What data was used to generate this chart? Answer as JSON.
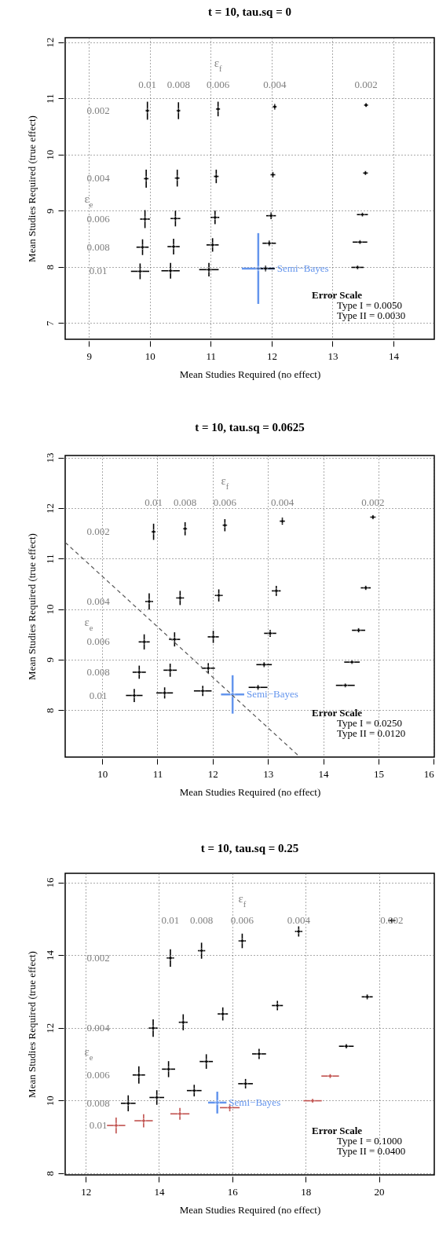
{
  "chart_data": [
    {
      "type": "scatter",
      "title": "t = 10, tau.sq = 0",
      "xlabel": "Mean Studies Required (no effect)",
      "ylabel": "Mean Studies Required (true effect)",
      "xlim": [
        8.61,
        14.67
      ],
      "ylim": [
        6.71,
        12.08
      ],
      "xticks": [
        9,
        10,
        11,
        12,
        13,
        14
      ],
      "yticks": [
        7,
        8,
        9,
        10,
        11,
        12
      ],
      "grid": true,
      "marker": "cross",
      "series": [
        {
          "color": "#000000",
          "x": [
            9.96,
            10.47,
            11.12,
            12.05,
            13.55
          ],
          "values": [
            10.78,
            10.78,
            10.81,
            10.85,
            10.88
          ],
          "xerrors": [
            0.02,
            0.02,
            0.03,
            0.03,
            0.03
          ],
          "errors": [
            0.16,
            0.15,
            0.13,
            0.05,
            0.03
          ]
        },
        {
          "color": "#000000",
          "x": [
            9.94,
            10.45,
            11.09,
            12.02,
            13.54
          ],
          "values": [
            9.57,
            9.58,
            9.61,
            9.64,
            9.67
          ],
          "xerrors": [
            0.04,
            0.04,
            0.04,
            0.04,
            0.04
          ],
          "errors": [
            0.16,
            0.15,
            0.12,
            0.05,
            0.03
          ]
        },
        {
          "color": "#000000",
          "x": [
            9.92,
            10.42,
            11.07,
            11.99,
            13.49
          ],
          "values": [
            8.85,
            8.86,
            8.88,
            8.91,
            8.93
          ],
          "xerrors": [
            0.08,
            0.08,
            0.07,
            0.08,
            0.09
          ],
          "errors": [
            0.16,
            0.14,
            0.12,
            0.06,
            0.02
          ]
        },
        {
          "color": "#000000",
          "x": [
            9.88,
            10.39,
            11.03,
            11.96,
            13.45
          ],
          "values": [
            8.35,
            8.36,
            8.39,
            8.42,
            8.44
          ],
          "xerrors": [
            0.1,
            0.1,
            0.1,
            0.11,
            0.12
          ],
          "errors": [
            0.14,
            0.14,
            0.12,
            0.05,
            0.02
          ]
        },
        {
          "color": "#000000",
          "x": [
            9.84,
            10.34,
            10.97,
            11.9,
            13.41
          ],
          "values": [
            7.92,
            7.93,
            7.95,
            7.97,
            7.99
          ],
          "xerrors": [
            0.15,
            0.15,
            0.16,
            0.15,
            0.1
          ],
          "errors": [
            0.14,
            0.14,
            0.12,
            0.05,
            0.02
          ]
        },
        {
          "name": "Semi−Bayes",
          "color": "#6495ed",
          "x": [
            11.78
          ],
          "values": [
            7.97
          ],
          "xerrors": [
            0.27
          ],
          "errors": [
            0.63
          ]
        }
      ],
      "annotations": [
        "ε$_{f}$",
        "0.01",
        "0.008",
        "0.006",
        "0.004",
        "0.002",
        "ε$_{e}$",
        "0.002",
        "0.004",
        "0.006",
        "0.008",
        "0.01",
        "Error Scale",
        "Type I = 0.0050",
        "Type II = 0.0030"
      ]
    },
    {
      "type": "scatter",
      "title": "t = 10, tau.sq = 0.0625",
      "xlabel": "Mean Studies Required (no effect)",
      "ylabel": "Mean Studies Required (true effect)",
      "xlim": [
        9.33,
        16.01
      ],
      "ylim": [
        7.07,
        13.04
      ],
      "xticks": [
        10,
        11,
        12,
        13,
        14,
        15,
        16
      ],
      "yticks": [
        8,
        9,
        10,
        11,
        12,
        13
      ],
      "grid": true,
      "marker": "cross",
      "series": [
        {
          "color": "#000000",
          "x": [
            10.93,
            11.5,
            12.22,
            13.26,
            14.9
          ],
          "values": [
            11.53,
            11.59,
            11.66,
            11.74,
            11.82
          ],
          "xerrors": [
            0.03,
            0.03,
            0.04,
            0.05,
            0.05
          ],
          "errors": [
            0.16,
            0.13,
            0.12,
            0.07,
            0.04
          ]
        },
        {
          "color": "#000000",
          "x": [
            10.85,
            11.41,
            12.11,
            13.15,
            14.77
          ],
          "values": [
            10.15,
            10.22,
            10.27,
            10.36,
            10.42
          ],
          "xerrors": [
            0.07,
            0.07,
            0.07,
            0.08,
            0.09
          ],
          "errors": [
            0.16,
            0.14,
            0.12,
            0.1,
            0.04
          ]
        },
        {
          "color": "#000000",
          "x": [
            10.76,
            11.31,
            12.01,
            13.04,
            14.64
          ],
          "values": [
            9.35,
            9.4,
            9.45,
            9.52,
            9.58
          ],
          "xerrors": [
            0.1,
            0.1,
            0.1,
            0.11,
            0.12
          ],
          "errors": [
            0.15,
            0.14,
            0.12,
            0.07,
            0.04
          ]
        },
        {
          "color": "#000000",
          "x": [
            10.67,
            11.23,
            11.92,
            12.93,
            14.52
          ],
          "values": [
            8.75,
            8.79,
            8.83,
            8.9,
            8.95
          ],
          "xerrors": [
            0.12,
            0.12,
            0.12,
            0.14,
            0.14
          ],
          "errors": [
            0.13,
            0.13,
            0.1,
            0.05,
            0.02
          ]
        },
        {
          "color": "#000000",
          "x": [
            10.58,
            11.13,
            11.82,
            12.82,
            14.4
          ],
          "values": [
            8.29,
            8.34,
            8.38,
            8.45,
            8.49
          ],
          "xerrors": [
            0.15,
            0.15,
            0.16,
            0.17,
            0.17
          ],
          "errors": [
            0.13,
            0.11,
            0.1,
            0.05,
            0.02
          ]
        },
        {
          "name": "Semi−Bayes",
          "color": "#6495ed",
          "x": [
            12.36
          ],
          "values": [
            8.31
          ],
          "xerrors": [
            0.21
          ],
          "errors": [
            0.38
          ]
        },
        {
          "type": "line",
          "color": "#555555",
          "line_style": "dashed",
          "marker": "none",
          "x": [
            9.33,
            13.58
          ],
          "values": [
            11.32,
            7.07
          ]
        }
      ],
      "annotations": [
        "ε$_{f}$",
        "0.01",
        "0.008",
        "0.006",
        "0.004",
        "0.002",
        "ε$_{e}$",
        "0.002",
        "0.004",
        "0.006",
        "0.008",
        "0.01",
        "Error Scale",
        "Type I = 0.0250",
        "Type II = 0.0120"
      ]
    },
    {
      "type": "scatter",
      "title": "t = 10, tau.sq = 0.25",
      "xlabel": "Mean Studies Required (no effect)",
      "ylabel": "Mean Studies Required (true effect)",
      "xlim": [
        11.44,
        21.51
      ],
      "ylim": [
        7.95,
        16.25
      ],
      "xticks": [
        12,
        14,
        16,
        18,
        20
      ],
      "yticks": [
        8,
        10,
        12,
        14,
        16
      ],
      "grid": true,
      "marker": "cross",
      "series": [
        {
          "color": "#000000",
          "x": [
            14.31,
            15.16,
            16.27,
            17.81,
            20.35
          ],
          "values": [
            13.92,
            14.12,
            14.39,
            14.65,
            14.95
          ],
          "xerrors": [
            0.1,
            0.1,
            0.1,
            0.1,
            0.1
          ],
          "errors": [
            0.24,
            0.22,
            0.2,
            0.14,
            0.07
          ]
        },
        {
          "color": "#000000",
          "x": [
            13.84,
            14.66,
            15.74,
            17.23,
            19.68
          ],
          "values": [
            11.99,
            12.15,
            12.38,
            12.61,
            12.85
          ],
          "xerrors": [
            0.12,
            0.12,
            0.14,
            0.15,
            0.15
          ],
          "errors": [
            0.24,
            0.22,
            0.18,
            0.13,
            0.07
          ]
        },
        {
          "color": "#000000",
          "x": [
            13.45,
            14.26,
            15.29,
            16.73,
            19.11
          ],
          "values": [
            10.7,
            10.86,
            11.07,
            11.28,
            11.49
          ],
          "xerrors": [
            0.17,
            0.18,
            0.18,
            0.19,
            0.2
          ],
          "errors": [
            0.24,
            0.22,
            0.2,
            0.14,
            0.06
          ]
        },
        {
          "colors": [
            "#000000",
            "#000000",
            "#000000",
            "#000000",
            "#c0504d"
          ],
          "x": [
            13.16,
            13.94,
            14.96,
            16.36,
            18.67
          ],
          "values": [
            9.92,
            10.08,
            10.27,
            10.46,
            10.67
          ],
          "xerrors": [
            0.2,
            0.2,
            0.2,
            0.2,
            0.24
          ],
          "errors": [
            0.22,
            0.2,
            0.16,
            0.13,
            0.05
          ]
        },
        {
          "color": "#c0504d",
          "x": [
            12.83,
            13.58,
            14.57,
            15.93,
            18.19
          ],
          "values": [
            9.31,
            9.44,
            9.63,
            9.8,
            9.99
          ],
          "xerrors": [
            0.25,
            0.25,
            0.26,
            0.27,
            0.25
          ],
          "errors": [
            0.22,
            0.18,
            0.16,
            0.1,
            0.05
          ]
        },
        {
          "name": "Semi−Bayes",
          "color": "#6495ed",
          "x": [
            15.59
          ],
          "values": [
            9.94
          ],
          "xerrors": [
            0.25
          ],
          "errors": [
            0.3
          ]
        }
      ],
      "annotations": [
        "ε$_{f}$",
        "0.01",
        "0.008",
        "0.006",
        "0.004",
        "0.002",
        "ε$_{e}$",
        "0.002",
        "0.004",
        "0.006",
        "0.008",
        "0.01",
        "Error Scale",
        "Type I = 0.1000",
        "Type II = 0.0400"
      ]
    }
  ]
}
